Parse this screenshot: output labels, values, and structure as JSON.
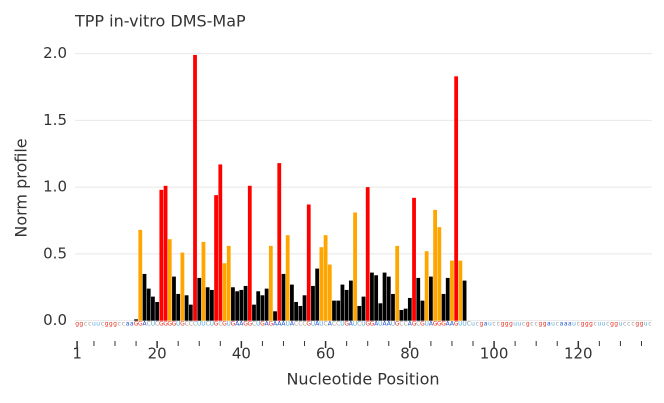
{
  "chart_data": {
    "type": "bar",
    "title": "TPP in-vitro DMS-MaP",
    "x_label": "Nucleotide Position",
    "y_label": "Norm profile",
    "x": [
      15,
      16,
      17,
      18,
      19,
      20,
      21,
      22,
      23,
      24,
      25,
      26,
      27,
      28,
      29,
      30,
      31,
      32,
      33,
      34,
      35,
      36,
      37,
      38,
      39,
      40,
      41,
      42,
      43,
      44,
      45,
      46,
      47,
      48,
      49,
      50,
      51,
      52,
      53,
      54,
      55,
      56,
      57,
      58,
      59,
      60,
      61,
      62,
      63,
      64,
      65,
      66,
      67,
      68,
      69,
      70,
      71,
      72,
      73,
      74,
      75,
      76,
      77,
      78,
      79,
      80,
      81,
      82,
      83,
      84,
      85,
      86,
      87,
      88,
      89,
      90,
      91,
      92,
      93
    ],
    "values": [
      0.01,
      0.68,
      0.35,
      0.24,
      0.18,
      0.14,
      0.98,
      1.01,
      0.61,
      0.33,
      0.2,
      0.51,
      0.19,
      0.12,
      1.99,
      0.32,
      0.59,
      0.25,
      0.23,
      0.94,
      1.17,
      0.43,
      0.56,
      0.25,
      0.22,
      0.23,
      0.26,
      1.01,
      0.12,
      0.22,
      0.19,
      0.24,
      0.56,
      0.07,
      1.18,
      0.35,
      0.64,
      0.27,
      0.14,
      0.11,
      0.19,
      0.87,
      0.26,
      0.39,
      0.55,
      0.64,
      0.42,
      0.15,
      0.15,
      0.27,
      0.23,
      0.3,
      0.81,
      0.11,
      0.18,
      1.0,
      0.36,
      0.34,
      0.13,
      0.36,
      0.33,
      0.2,
      0.56,
      0.08,
      0.09,
      0.17,
      0.92,
      0.32,
      0.15,
      0.52,
      0.33,
      0.83,
      0.7,
      0.2,
      0.32,
      0.45,
      1.83,
      0.45,
      0.3
    ],
    "colors": [
      "#000000",
      "#ffa500",
      "#000000",
      "#000000",
      "#000000",
      "#000000",
      "#ff0000",
      "#ff0000",
      "#ffa500",
      "#000000",
      "#000000",
      "#ffa500",
      "#000000",
      "#000000",
      "#ff0000",
      "#000000",
      "#ffa500",
      "#000000",
      "#000000",
      "#ff0000",
      "#ff0000",
      "#ffa500",
      "#ffa500",
      "#000000",
      "#000000",
      "#000000",
      "#000000",
      "#ff0000",
      "#000000",
      "#000000",
      "#000000",
      "#000000",
      "#ffa500",
      "#000000",
      "#ff0000",
      "#000000",
      "#ffa500",
      "#000000",
      "#000000",
      "#000000",
      "#000000",
      "#ff0000",
      "#000000",
      "#000000",
      "#ffa500",
      "#ffa500",
      "#ffa500",
      "#000000",
      "#000000",
      "#000000",
      "#000000",
      "#000000",
      "#ffa500",
      "#000000",
      "#000000",
      "#ff0000",
      "#000000",
      "#000000",
      "#000000",
      "#000000",
      "#000000",
      "#000000",
      "#ffa500",
      "#000000",
      "#000000",
      "#000000",
      "#ff0000",
      "#000000",
      "#000000",
      "#ffa500",
      "#000000",
      "#ffa500",
      "#ffa500",
      "#000000",
      "#000000",
      "#ffa500",
      "#ff0000",
      "#ffa500",
      "#000000"
    ],
    "sequence": [
      "g",
      "g",
      "c",
      "c",
      "u",
      "u",
      "c",
      "g",
      "g",
      "g",
      "c",
      "c",
      "a",
      "a",
      "G",
      "G",
      "A",
      "C",
      "U",
      "C",
      "G",
      "G",
      "G",
      "G",
      "U",
      "G",
      "C",
      "C",
      "C",
      "U",
      "U",
      "C",
      "U",
      "G",
      "C",
      "G",
      "U",
      "G",
      "A",
      "A",
      "G",
      "G",
      "C",
      "U",
      "G",
      "A",
      "G",
      "A",
      "A",
      "A",
      "U",
      "A",
      "C",
      "C",
      "C",
      "G",
      "U",
      "A",
      "U",
      "C",
      "A",
      "C",
      "C",
      "U",
      "G",
      "A",
      "U",
      "C",
      "U",
      "G",
      "G",
      "A",
      "U",
      "A",
      "A",
      "U",
      "G",
      "C",
      "C",
      "A",
      "G",
      "C",
      "G",
      "U",
      "A",
      "G",
      "G",
      "G",
      "A",
      "A",
      "G",
      "U",
      "U",
      "C",
      "u",
      "c",
      "g",
      "a",
      "u",
      "c",
      "c",
      "g",
      "g",
      "g",
      "u",
      "u",
      "c",
      "g",
      "c",
      "c",
      "g",
      "g",
      "a",
      "u",
      "c",
      "a",
      "a",
      "a",
      "u",
      "c",
      "g",
      "g",
      "g",
      "c",
      "u",
      "u",
      "c",
      "g",
      "g",
      "u",
      "c",
      "c",
      "c",
      "g",
      "g",
      "u",
      "c"
    ],
    "base_colors": {
      "A": "#1f4fd0",
      "C": "#9a9a9a",
      "G": "#e8311f",
      "U": "#4fa8e0"
    },
    "xlim": [
      0.5,
      137.5
    ],
    "ylim": [
      -0.07,
      2.15
    ],
    "xticks": [
      1,
      20,
      40,
      60,
      80,
      100,
      120
    ],
    "xticks_minor": [
      5,
      10,
      15,
      25,
      30,
      35,
      45,
      50,
      55,
      65,
      70,
      75,
      85,
      90,
      95,
      105,
      110,
      115,
      125,
      130,
      135
    ],
    "yticks": [
      {
        "value": 0,
        "label": "0.0"
      },
      {
        "value": 0.5,
        "label": "0.5"
      },
      {
        "value": 1,
        "label": "1.0"
      },
      {
        "value": 1.5,
        "label": "1.5"
      },
      {
        "value": 2,
        "label": "2.0"
      }
    ],
    "grid": true
  }
}
